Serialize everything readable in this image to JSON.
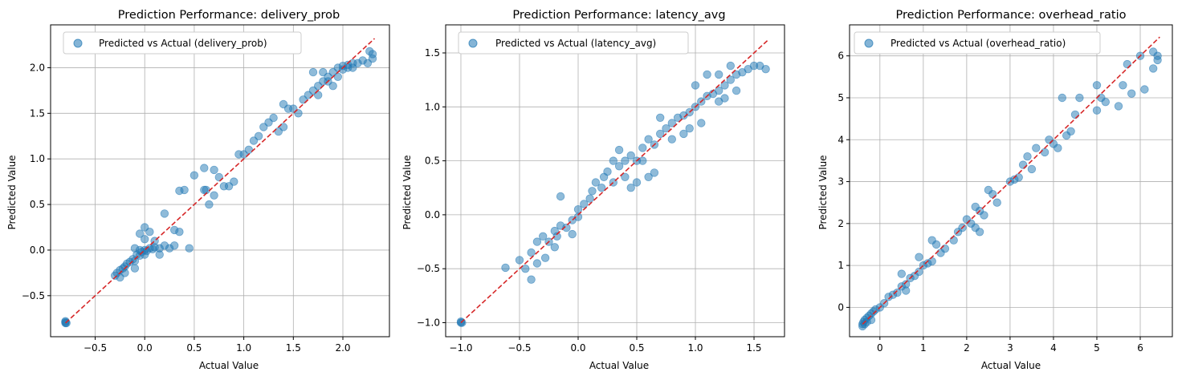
{
  "colors": {
    "points": "#1f77b4",
    "ideal_line": "#d62728",
    "grid": "#b0b0b0"
  },
  "chart_data": [
    {
      "type": "scatter",
      "title": "Prediction Performance: delivery_prob",
      "xlabel": "Actual Value",
      "ylabel": "Predicted Value",
      "legend": "Predicted vs Actual (delivery_prob)",
      "legend_position": "top-left",
      "grid": true,
      "xlim": [
        -0.95,
        2.47
      ],
      "ylim": [
        -0.95,
        2.47
      ],
      "xticks": [
        -0.5,
        0.0,
        0.5,
        1.0,
        1.5,
        2.0
      ],
      "yticks": [
        -0.5,
        0.0,
        0.5,
        1.0,
        1.5,
        2.0
      ],
      "xtick_labels": [
        "−0.5",
        "0.0",
        "0.5",
        "1.0",
        "1.5",
        "2.0"
      ],
      "ytick_labels": [
        "−0.5",
        "0.0",
        "0.5",
        "1.0",
        "1.5",
        "2.0"
      ],
      "ideal_line": [
        [
          -0.8,
          -0.8
        ],
        [
          2.32,
          2.32
        ]
      ],
      "points": [
        [
          -0.8,
          -0.8
        ],
        [
          -0.8,
          -0.79
        ],
        [
          -0.79,
          -0.8
        ],
        [
          -0.8,
          -0.78
        ],
        [
          -0.3,
          -0.28
        ],
        [
          -0.28,
          -0.25
        ],
        [
          -0.25,
          -0.22
        ],
        [
          -0.22,
          -0.2
        ],
        [
          -0.2,
          -0.18
        ],
        [
          -0.18,
          -0.15
        ],
        [
          -0.15,
          -0.13
        ],
        [
          -0.12,
          -0.1
        ],
        [
          -0.1,
          -0.12
        ],
        [
          -0.08,
          -0.05
        ],
        [
          -0.05,
          -0.06
        ],
        [
          -0.03,
          -0.02
        ],
        [
          0.0,
          0.0
        ],
        [
          0.02,
          -0.01
        ],
        [
          0.05,
          0.02
        ],
        [
          0.08,
          0.01
        ],
        [
          0.1,
          0.03
        ],
        [
          0.15,
          0.02
        ],
        [
          0.2,
          0.05
        ],
        [
          0.25,
          0.02
        ],
        [
          -0.2,
          -0.25
        ],
        [
          -0.25,
          -0.3
        ],
        [
          -0.1,
          -0.2
        ],
        [
          0.0,
          -0.05
        ],
        [
          -0.05,
          0.0
        ],
        [
          -0.1,
          0.02
        ],
        [
          0.0,
          0.12
        ],
        [
          -0.05,
          0.18
        ],
        [
          0.0,
          0.25
        ],
        [
          0.05,
          0.2
        ],
        [
          0.2,
          0.4
        ],
        [
          0.1,
          0.1
        ],
        [
          0.3,
          0.22
        ],
        [
          0.35,
          0.2
        ],
        [
          0.45,
          0.02
        ],
        [
          0.3,
          0.05
        ],
        [
          0.15,
          -0.05
        ],
        [
          0.35,
          0.65
        ],
        [
          0.4,
          0.66
        ],
        [
          0.5,
          0.82
        ],
        [
          0.6,
          0.66
        ],
        [
          0.62,
          0.66
        ],
        [
          0.65,
          0.5
        ],
        [
          0.7,
          0.6
        ],
        [
          0.8,
          0.7
        ],
        [
          0.75,
          0.8
        ],
        [
          0.85,
          0.7
        ],
        [
          0.9,
          0.75
        ],
        [
          0.95,
          1.05
        ],
        [
          1.0,
          1.05
        ],
        [
          1.05,
          1.1
        ],
        [
          0.6,
          0.9
        ],
        [
          0.7,
          0.88
        ],
        [
          1.1,
          1.2
        ],
        [
          1.15,
          1.25
        ],
        [
          1.2,
          1.35
        ],
        [
          1.25,
          1.4
        ],
        [
          1.3,
          1.45
        ],
        [
          1.35,
          1.3
        ],
        [
          1.4,
          1.35
        ],
        [
          1.4,
          1.6
        ],
        [
          1.45,
          1.55
        ],
        [
          1.5,
          1.55
        ],
        [
          1.55,
          1.5
        ],
        [
          1.6,
          1.65
        ],
        [
          1.65,
          1.7
        ],
        [
          1.7,
          1.75
        ],
        [
          1.75,
          1.8
        ],
        [
          1.7,
          1.95
        ],
        [
          1.75,
          1.7
        ],
        [
          1.8,
          1.85
        ],
        [
          1.8,
          1.95
        ],
        [
          1.85,
          1.9
        ],
        [
          1.9,
          1.95
        ],
        [
          1.95,
          2.0
        ],
        [
          2.0,
          2.02
        ],
        [
          2.05,
          2.03
        ],
        [
          2.1,
          2.05
        ],
        [
          2.15,
          2.05
        ],
        [
          2.2,
          2.08
        ],
        [
          2.25,
          2.05
        ],
        [
          2.3,
          2.1
        ],
        [
          2.3,
          2.15
        ],
        [
          2.27,
          2.18
        ],
        [
          1.9,
          1.8
        ],
        [
          1.85,
          1.85
        ],
        [
          1.95,
          1.9
        ],
        [
          2.0,
          1.98
        ],
        [
          2.05,
          2.0
        ],
        [
          2.1,
          2.0
        ]
      ]
    },
    {
      "type": "scatter",
      "title": "Prediction Performance: latency_avg",
      "xlabel": "Actual Value",
      "ylabel": "Predicted Value",
      "legend": "Predicted vs Actual (latency_avg)",
      "legend_position": "top-left",
      "grid": true,
      "xlim": [
        -1.13,
        1.76
      ],
      "ylim": [
        -1.13,
        1.76
      ],
      "xticks": [
        -1.0,
        -0.5,
        0.0,
        0.5,
        1.0,
        1.5
      ],
      "yticks": [
        -1.0,
        -0.5,
        0.0,
        0.5,
        1.0,
        1.5
      ],
      "xtick_labels": [
        "−1.0",
        "−0.5",
        "0.0",
        "0.5",
        "1.0",
        "1.5"
      ],
      "ytick_labels": [
        "−1.0",
        "−0.5",
        "0.0",
        "0.5",
        "1.0",
        "1.5"
      ],
      "ideal_line": [
        [
          -1.0,
          -1.0
        ],
        [
          1.62,
          1.62
        ]
      ],
      "points": [
        [
          -1.0,
          -1.0
        ],
        [
          -1.0,
          -0.99
        ],
        [
          -0.99,
          -1.0
        ],
        [
          -0.62,
          -0.49
        ],
        [
          -0.5,
          -0.42
        ],
        [
          -0.45,
          -0.5
        ],
        [
          -0.4,
          -0.35
        ],
        [
          -0.35,
          -0.25
        ],
        [
          -0.3,
          -0.2
        ],
        [
          -0.28,
          -0.4
        ],
        [
          -0.2,
          -0.3
        ],
        [
          -0.18,
          -0.2
        ],
        [
          -0.15,
          -0.1
        ],
        [
          -0.1,
          -0.12
        ],
        [
          -0.05,
          -0.05
        ],
        [
          0.0,
          -0.02
        ],
        [
          -0.2,
          -0.15
        ],
        [
          -0.25,
          -0.25
        ],
        [
          -0.35,
          -0.45
        ],
        [
          -0.4,
          -0.6
        ],
        [
          -0.15,
          0.17
        ],
        [
          0.0,
          0.05
        ],
        [
          -0.05,
          -0.18
        ],
        [
          0.05,
          0.1
        ],
        [
          0.1,
          0.15
        ],
        [
          0.12,
          0.22
        ],
        [
          0.15,
          0.3
        ],
        [
          0.2,
          0.25
        ],
        [
          0.22,
          0.35
        ],
        [
          0.25,
          0.4
        ],
        [
          0.3,
          0.3
        ],
        [
          0.35,
          0.45
        ],
        [
          0.4,
          0.5
        ],
        [
          0.45,
          0.55
        ],
        [
          0.5,
          0.5
        ],
        [
          0.55,
          0.62
        ],
        [
          0.6,
          0.7
        ],
        [
          0.65,
          0.65
        ],
        [
          0.7,
          0.75
        ],
        [
          0.75,
          0.8
        ],
        [
          0.8,
          0.85
        ],
        [
          0.85,
          0.9
        ],
        [
          0.9,
          0.92
        ],
        [
          0.6,
          0.35
        ],
        [
          0.65,
          0.39
        ],
        [
          0.7,
          0.9
        ],
        [
          0.5,
          0.3
        ],
        [
          0.4,
          0.35
        ],
        [
          0.45,
          0.25
        ],
        [
          0.55,
          0.5
        ],
        [
          0.3,
          0.5
        ],
        [
          0.35,
          0.6
        ],
        [
          0.9,
          0.75
        ],
        [
          0.95,
          0.95
        ],
        [
          1.0,
          1.0
        ],
        [
          1.05,
          1.05
        ],
        [
          1.1,
          1.1
        ],
        [
          1.15,
          1.12
        ],
        [
          1.2,
          1.15
        ],
        [
          1.25,
          1.2
        ],
        [
          1.3,
          1.25
        ],
        [
          1.35,
          1.3
        ],
        [
          1.4,
          1.32
        ],
        [
          1.45,
          1.35
        ],
        [
          1.5,
          1.38
        ],
        [
          1.55,
          1.38
        ],
        [
          1.6,
          1.35
        ],
        [
          1.0,
          1.2
        ],
        [
          1.1,
          1.3
        ],
        [
          1.2,
          1.3
        ],
        [
          1.3,
          1.38
        ],
        [
          0.95,
          0.8
        ],
        [
          1.05,
          0.85
        ],
        [
          1.2,
          1.05
        ],
        [
          1.25,
          1.08
        ],
        [
          1.35,
          1.15
        ],
        [
          0.8,
          0.7
        ]
      ]
    },
    {
      "type": "scatter",
      "title": "Prediction Performance: overhead_ratio",
      "xlabel": "Actual Value",
      "ylabel": "Predicted Value",
      "legend": "Predicted vs Actual (overhead_ratio)",
      "legend_position": "top-left",
      "grid": true,
      "xlim": [
        -0.7,
        6.74
      ],
      "ylim": [
        -0.7,
        6.74
      ],
      "xticks": [
        0,
        1,
        2,
        3,
        4,
        5,
        6
      ],
      "yticks": [
        0,
        1,
        2,
        3,
        4,
        5,
        6
      ],
      "xtick_labels": [
        "0",
        "1",
        "2",
        "3",
        "4",
        "5",
        "6"
      ],
      "ytick_labels": [
        "0",
        "1",
        "2",
        "3",
        "4",
        "5",
        "6"
      ],
      "ideal_line": [
        [
          -0.4,
          -0.4
        ],
        [
          6.45,
          6.45
        ]
      ],
      "points": [
        [
          -0.4,
          -0.4
        ],
        [
          -0.38,
          -0.35
        ],
        [
          -0.35,
          -0.3
        ],
        [
          -0.3,
          -0.25
        ],
        [
          -0.25,
          -0.2
        ],
        [
          -0.2,
          -0.15
        ],
        [
          -0.15,
          -0.1
        ],
        [
          -0.1,
          -0.05
        ],
        [
          -0.4,
          -0.45
        ],
        [
          -0.35,
          -0.4
        ],
        [
          -0.3,
          -0.35
        ],
        [
          -0.2,
          -0.3
        ],
        [
          0.0,
          0.0
        ],
        [
          0.1,
          0.1
        ],
        [
          0.2,
          0.25
        ],
        [
          0.3,
          0.3
        ],
        [
          0.4,
          0.35
        ],
        [
          0.5,
          0.5
        ],
        [
          0.6,
          0.55
        ],
        [
          0.7,
          0.7
        ],
        [
          0.8,
          0.75
        ],
        [
          0.9,
          0.85
        ],
        [
          1.0,
          1.0
        ],
        [
          1.1,
          1.05
        ],
        [
          1.2,
          1.6
        ],
        [
          1.3,
          1.5
        ],
        [
          1.4,
          1.3
        ],
        [
          1.5,
          1.4
        ],
        [
          1.7,
          1.6
        ],
        [
          1.8,
          1.8
        ],
        [
          1.9,
          1.9
        ],
        [
          2.0,
          2.1
        ],
        [
          2.1,
          2.0
        ],
        [
          2.2,
          2.4
        ],
        [
          2.3,
          2.3
        ],
        [
          2.4,
          2.2
        ],
        [
          2.5,
          2.8
        ],
        [
          2.6,
          2.7
        ],
        [
          2.7,
          2.5
        ],
        [
          2.2,
          1.9
        ],
        [
          2.3,
          1.8
        ],
        [
          1.2,
          1.1
        ],
        [
          0.9,
          1.2
        ],
        [
          0.5,
          0.8
        ],
        [
          0.6,
          0.4
        ],
        [
          3.0,
          3.0
        ],
        [
          3.1,
          3.05
        ],
        [
          3.2,
          3.1
        ],
        [
          3.3,
          3.4
        ],
        [
          3.4,
          3.6
        ],
        [
          3.5,
          3.3
        ],
        [
          3.6,
          3.8
        ],
        [
          3.8,
          3.7
        ],
        [
          3.9,
          4.0
        ],
        [
          4.0,
          3.9
        ],
        [
          4.1,
          3.8
        ],
        [
          4.2,
          5.0
        ],
        [
          4.3,
          4.1
        ],
        [
          4.4,
          4.2
        ],
        [
          4.5,
          4.6
        ],
        [
          4.6,
          5.0
        ],
        [
          5.0,
          5.3
        ],
        [
          5.0,
          4.7
        ],
        [
          5.1,
          5.0
        ],
        [
          5.2,
          4.9
        ],
        [
          5.5,
          4.8
        ],
        [
          5.6,
          5.3
        ],
        [
          5.7,
          5.8
        ],
        [
          5.8,
          5.1
        ],
        [
          6.0,
          6.0
        ],
        [
          6.1,
          5.2
        ],
        [
          6.3,
          5.7
        ],
        [
          6.4,
          5.9
        ],
        [
          6.4,
          6.0
        ],
        [
          6.3,
          6.1
        ]
      ]
    }
  ]
}
